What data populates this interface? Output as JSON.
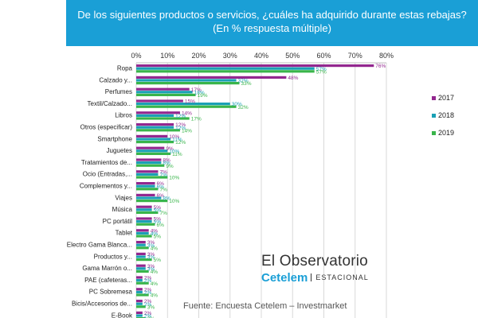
{
  "header": {
    "line1": "De los siguientes productos o servicios, ¿cuáles ha adquirido durante estas rebajas?",
    "line2": "(En % respuesta  múltiple)"
  },
  "branding": {
    "name": "El Observatorio",
    "brand": "Cetelem",
    "edition": "ESTACIONAL"
  },
  "source": "Fuente: Encuesta Cetelem – Investmarket",
  "colors": {
    "2017": "#93278f",
    "2018": "#1aa0b5",
    "2019": "#39b54a",
    "header": "#1a9fd6"
  },
  "chart_data": {
    "type": "bar",
    "orientation": "horizontal",
    "xlim": [
      0,
      80
    ],
    "xticks": [
      "0%",
      "10%",
      "20%",
      "30%",
      "40%",
      "50%",
      "60%",
      "70%",
      "80%"
    ],
    "grid": true,
    "legend_position": "right",
    "categories": [
      "Ropa",
      "Calzado y...",
      "Perfumes",
      "Textil/Calzado...",
      "Libros",
      "Otros (especificar)",
      "Smartphone",
      "Juguetes",
      "Tratamientos de...",
      "Ocio (Entradas,...",
      "Complementos y...",
      "Viajes",
      "Música",
      "PC portátil",
      "Tablet",
      "Electro Gama Blanca...",
      "Productos y...",
      "Gama Marrón o...",
      "PAE (cafeteras...",
      "PC Sobremesa",
      "Bicis/Accesorios de...",
      "E-Book"
    ],
    "series": [
      {
        "name": "2017",
        "values": [
          76,
          48,
          17,
          15,
          14,
          12,
          10,
          9,
          8,
          7,
          6,
          6,
          5,
          5,
          4,
          3,
          3,
          3,
          2,
          2,
          2,
          2
        ]
      },
      {
        "name": "2018",
        "values": [
          57,
          32,
          18,
          30,
          12,
          12,
          11,
          10,
          8,
          7,
          6,
          8,
          5,
          5,
          4,
          3,
          3,
          3,
          2,
          2,
          2,
          2
        ]
      },
      {
        "name": "2019",
        "values": [
          57,
          33,
          19,
          32,
          17,
          14,
          12,
          11,
          9,
          10,
          7,
          10,
          7,
          6,
          5,
          4,
          5,
          4,
          4,
          4,
          3,
          3
        ]
      }
    ]
  }
}
